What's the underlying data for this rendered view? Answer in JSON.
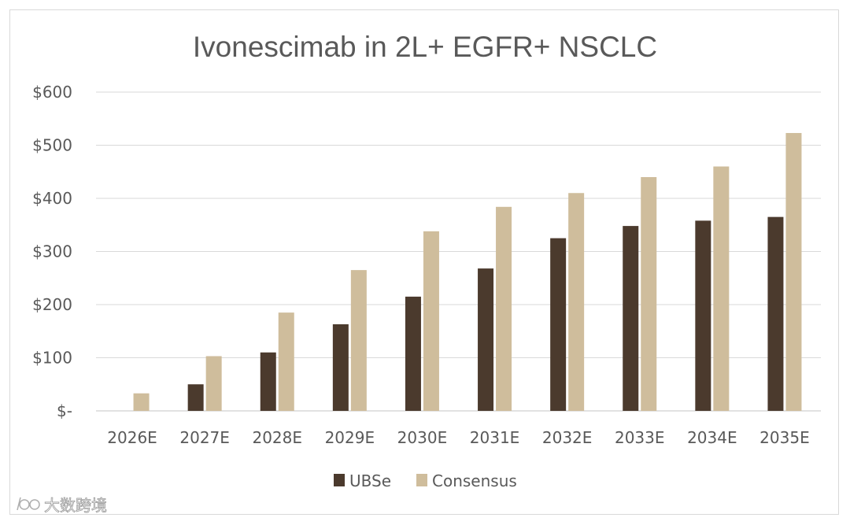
{
  "chart_data": {
    "type": "bar",
    "title": "Ivonescimab in 2L+ EGFR+ NSCLC",
    "xlabel": "",
    "ylabel": "",
    "categories": [
      "2026E",
      "2027E",
      "2028E",
      "2029E",
      "2030E",
      "2031E",
      "2032E",
      "2033E",
      "2034E",
      "2035E"
    ],
    "series": [
      {
        "name": "UBSe",
        "color": "#4b3a2d",
        "values": [
          0,
          50,
          110,
          163,
          215,
          268,
          325,
          348,
          358,
          365
        ]
      },
      {
        "name": "Consensus",
        "color": "#cfbd9c",
        "values": [
          33,
          103,
          185,
          265,
          338,
          384,
          410,
          440,
          460,
          523
        ]
      }
    ],
    "ylim": [
      0,
      600
    ],
    "yticks": [
      0,
      100,
      200,
      300,
      400,
      500,
      600
    ],
    "ytick_labels": [
      "$-",
      "$100",
      "$200",
      "$300",
      "$400",
      "$500",
      "$600"
    ],
    "grid": true,
    "legend": "bottom-center"
  },
  "watermark": {
    "text": "大数跨境"
  }
}
